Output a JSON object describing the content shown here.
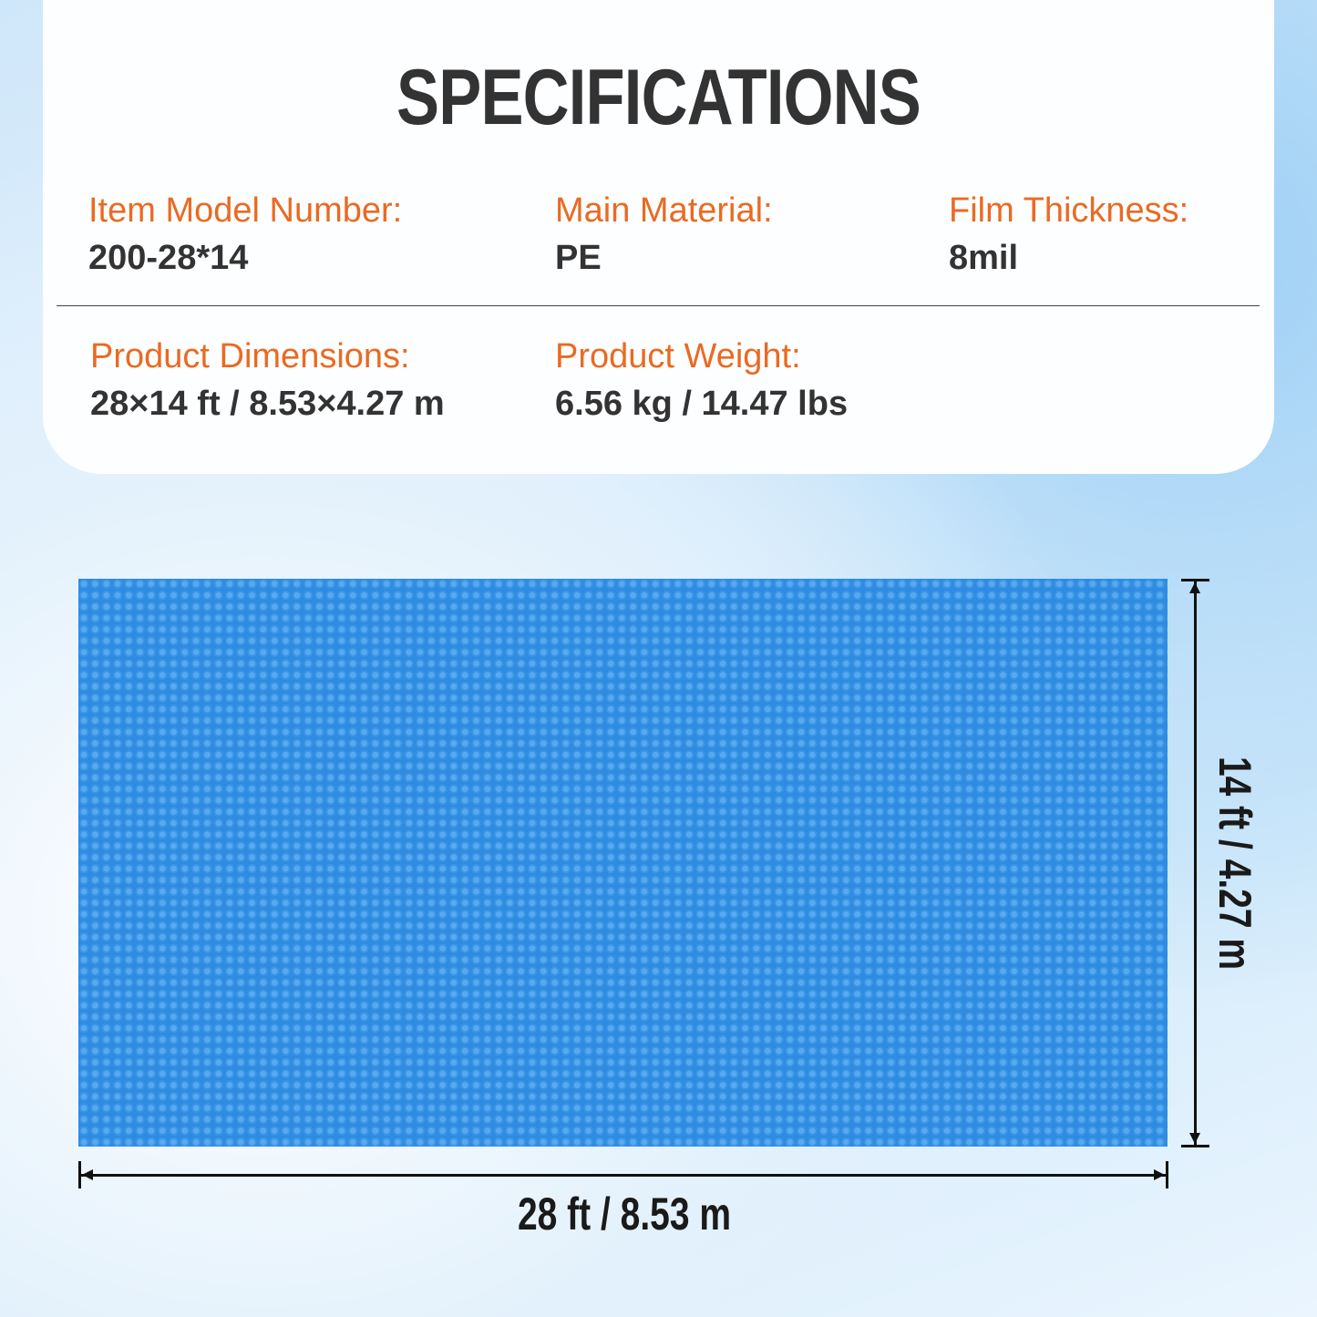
{
  "title": "SPECIFICATIONS",
  "specs": [
    {
      "label": "Item Model Number:",
      "value": "200-28*14"
    },
    {
      "label": "Main Material:",
      "value": "PE"
    },
    {
      "label": "Film Thickness:",
      "value": "8mil"
    },
    {
      "label": "Product Dimensions:",
      "value": "28×14 ft / 8.53×4.27 m"
    },
    {
      "label": "Product Weight:",
      "value": "6.56 kg / 14.47 lbs"
    }
  ],
  "dimensions": {
    "width": "28 ft / 8.53 m",
    "height": "14 ft / 4.27 m"
  },
  "colors": {
    "accent": "#ea6a22",
    "text": "#333333",
    "cover": "#2e8be0"
  }
}
